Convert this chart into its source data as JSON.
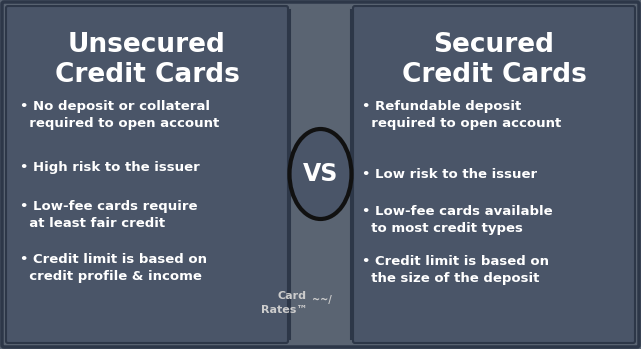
{
  "background_color": "#5a6472",
  "panel_color": "#4a5568",
  "panel_left_color": "#4a5568",
  "panel_right_color": "#4a5568",
  "border_color": "#2d3748",
  "title_color": "#ffffff",
  "text_color": "#ffffff",
  "ellipse_fill": "#4a5568",
  "ellipse_edge": "#111111",
  "vs_color": "#ffffff",
  "cardrates_color": "#aaaaaa",
  "left_title": "Unsecured\nCredit Cards",
  "right_title": "Secured\nCredit Cards",
  "vs_text": "VS",
  "left_bullets": [
    "• No deposit or collateral\n  required to open account",
    "• High risk to the issuer",
    "• Low-fee cards require\n  at least fair credit",
    "• Credit limit is based on\n  credit profile & income"
  ],
  "right_bullets": [
    "• Refundable deposit\n  required to open account",
    "• Low risk to the issuer",
    "• Low-fee cards available\n  to most credit types",
    "• Credit limit is based on\n  the size of the deposit"
  ],
  "cardrates_line1": "Card",
  "cardrates_line2": "Rates™"
}
